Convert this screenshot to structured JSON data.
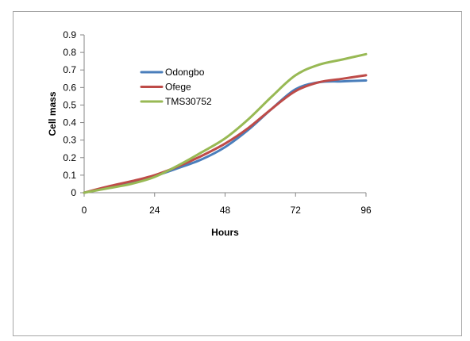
{
  "chart_data": {
    "type": "line",
    "title": "",
    "xlabel": "Hours",
    "ylabel": "Cell mass",
    "xlim": [
      0,
      96
    ],
    "ylim": [
      0,
      0.9
    ],
    "x_ticks": [
      "0",
      "24",
      "48",
      "72",
      "96"
    ],
    "y_ticks": [
      "0",
      "0.1",
      "0.2",
      "0.3",
      "0.4",
      "0.5",
      "0.6",
      "0.7",
      "0.8",
      "0.9"
    ],
    "grid": false,
    "legend_position": "upper-left inside plot",
    "series": [
      {
        "name": "Odongbo",
        "color": "#4a7ebb",
        "x": [
          0,
          8,
          16,
          24,
          32,
          40,
          48,
          56,
          64,
          72,
          80,
          88,
          96
        ],
        "y": [
          0.0,
          0.03,
          0.06,
          0.095,
          0.14,
          0.19,
          0.26,
          0.36,
          0.48,
          0.59,
          0.63,
          0.635,
          0.64
        ]
      },
      {
        "name": "Ofege",
        "color": "#be4b48",
        "x": [
          0,
          8,
          16,
          24,
          32,
          40,
          48,
          56,
          64,
          72,
          80,
          88,
          96
        ],
        "y": [
          0.0,
          0.035,
          0.065,
          0.1,
          0.15,
          0.21,
          0.28,
          0.37,
          0.48,
          0.58,
          0.63,
          0.65,
          0.67
        ]
      },
      {
        "name": "TMS30752",
        "color": "#98b954",
        "x": [
          0,
          8,
          16,
          24,
          32,
          40,
          48,
          56,
          64,
          72,
          80,
          88,
          96
        ],
        "y": [
          0.0,
          0.025,
          0.05,
          0.09,
          0.155,
          0.23,
          0.31,
          0.42,
          0.55,
          0.67,
          0.73,
          0.76,
          0.79
        ]
      }
    ]
  }
}
